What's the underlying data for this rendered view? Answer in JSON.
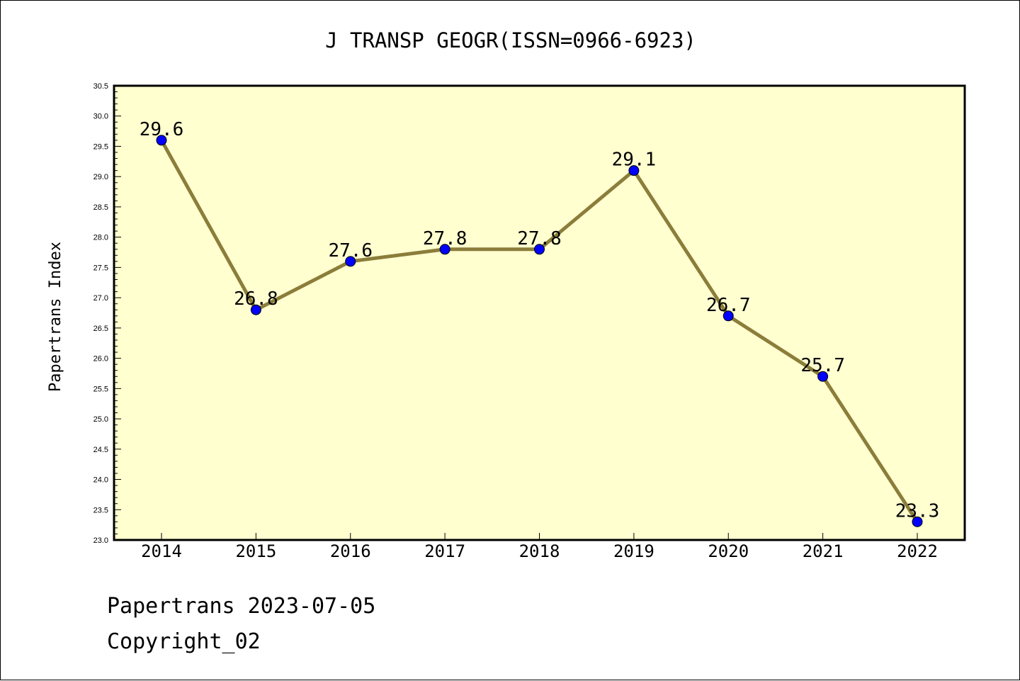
{
  "chart_data": {
    "type": "line",
    "title": "J TRANSP GEOGR(ISSN=0966-6923)",
    "ylabel": "Papertrans Index",
    "xlabel": "",
    "categories": [
      "2014",
      "2015",
      "2016",
      "2017",
      "2018",
      "2019",
      "2020",
      "2021",
      "2022"
    ],
    "series": [
      {
        "values": [
          29.6,
          26.8,
          27.6,
          27.8,
          27.8,
          29.1,
          26.7,
          25.7,
          23.3
        ]
      }
    ],
    "data_labels": [
      "29.6",
      "26.8",
      "27.6",
      "27.8",
      "27.8",
      "29.1",
      "26.7",
      "25.7",
      "23.3"
    ],
    "ylim": [
      23.0,
      30.5
    ],
    "yticks": [
      "23.0",
      "23.5",
      "24.0",
      "24.5",
      "25.0",
      "25.5",
      "26.0",
      "26.5",
      "27.0",
      "27.5",
      "28.0",
      "28.5",
      "29.0",
      "29.5",
      "30.0",
      "30.5"
    ],
    "grid": false,
    "colors": {
      "line": "#8b7d3a",
      "marker": "#0000ff",
      "plot_bg": "#ffffd0"
    }
  },
  "footer": {
    "line1": "Papertrans 2023-07-05",
    "line2": "Copyright_02"
  }
}
